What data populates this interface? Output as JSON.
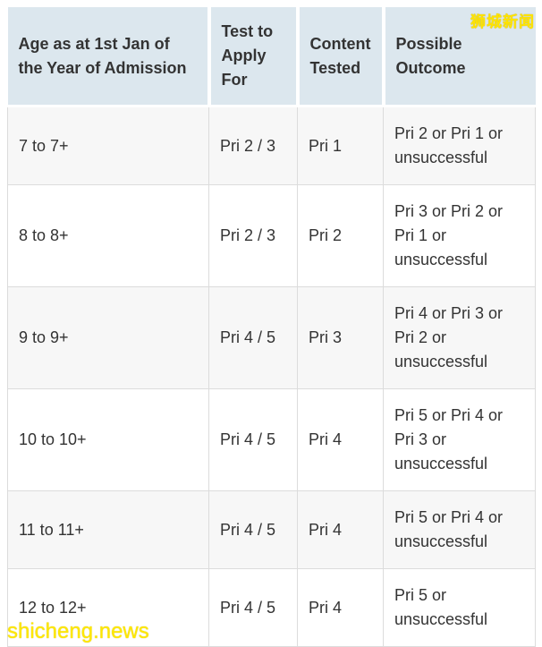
{
  "watermarks": {
    "site_name_cn": "狮城新闻",
    "site_domain": "shicheng.news"
  },
  "colors": {
    "header_bg": "#dce7ee",
    "row_alt_bg": "#f7f7f7",
    "row_bg": "#ffffff",
    "border": "#dcdcdc",
    "text": "#333333",
    "watermark": "#ffe400"
  },
  "table": {
    "columns": [
      {
        "key": "age",
        "label": "Age as at 1st Jan of the Year of Admission"
      },
      {
        "key": "test",
        "label": "Test to Apply For"
      },
      {
        "key": "content",
        "label": "Content Tested"
      },
      {
        "key": "outcome",
        "label": "Possible Outcome"
      }
    ],
    "rows": [
      {
        "age": "7 to 7+",
        "test": "Pri 2 / 3",
        "content": "Pri 1",
        "outcome": "Pri 2 or Pri 1 or unsuccessful"
      },
      {
        "age": "8 to 8+",
        "test": "Pri 2 / 3",
        "content": "Pri 2",
        "outcome": "Pri 3 or Pri 2 or Pri 1 or unsuccessful"
      },
      {
        "age": "9 to 9+",
        "test": "Pri 4 / 5",
        "content": "Pri 3",
        "outcome": "Pri 4 or Pri 3 or Pri 2 or unsuccessful"
      },
      {
        "age": "10 to 10+",
        "test": "Pri 4 / 5",
        "content": "Pri 4",
        "outcome": "Pri 5 or Pri 4 or Pri 3 or unsuccessful"
      },
      {
        "age": "11 to 11+",
        "test": "Pri 4 / 5",
        "content": "Pri 4",
        "outcome": "Pri 5 or Pri 4 or unsuccessful"
      },
      {
        "age": "12 to 12+",
        "test": "Pri 4 / 5",
        "content": "Pri 4",
        "outcome": "Pri 5 or unsuccessful"
      }
    ]
  }
}
